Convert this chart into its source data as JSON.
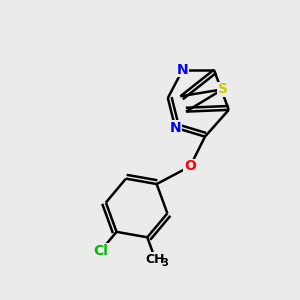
{
  "background_color": "#ebebeb",
  "bond_color": "#000000",
  "bond_width": 1.8,
  "atom_colors": {
    "N": "#0000ff",
    "S": "#cccc00",
    "O": "#ff0000",
    "Cl": "#00bb00",
    "C": "#000000"
  },
  "font_size_atom": 10,
  "font_size_sub": 7
}
